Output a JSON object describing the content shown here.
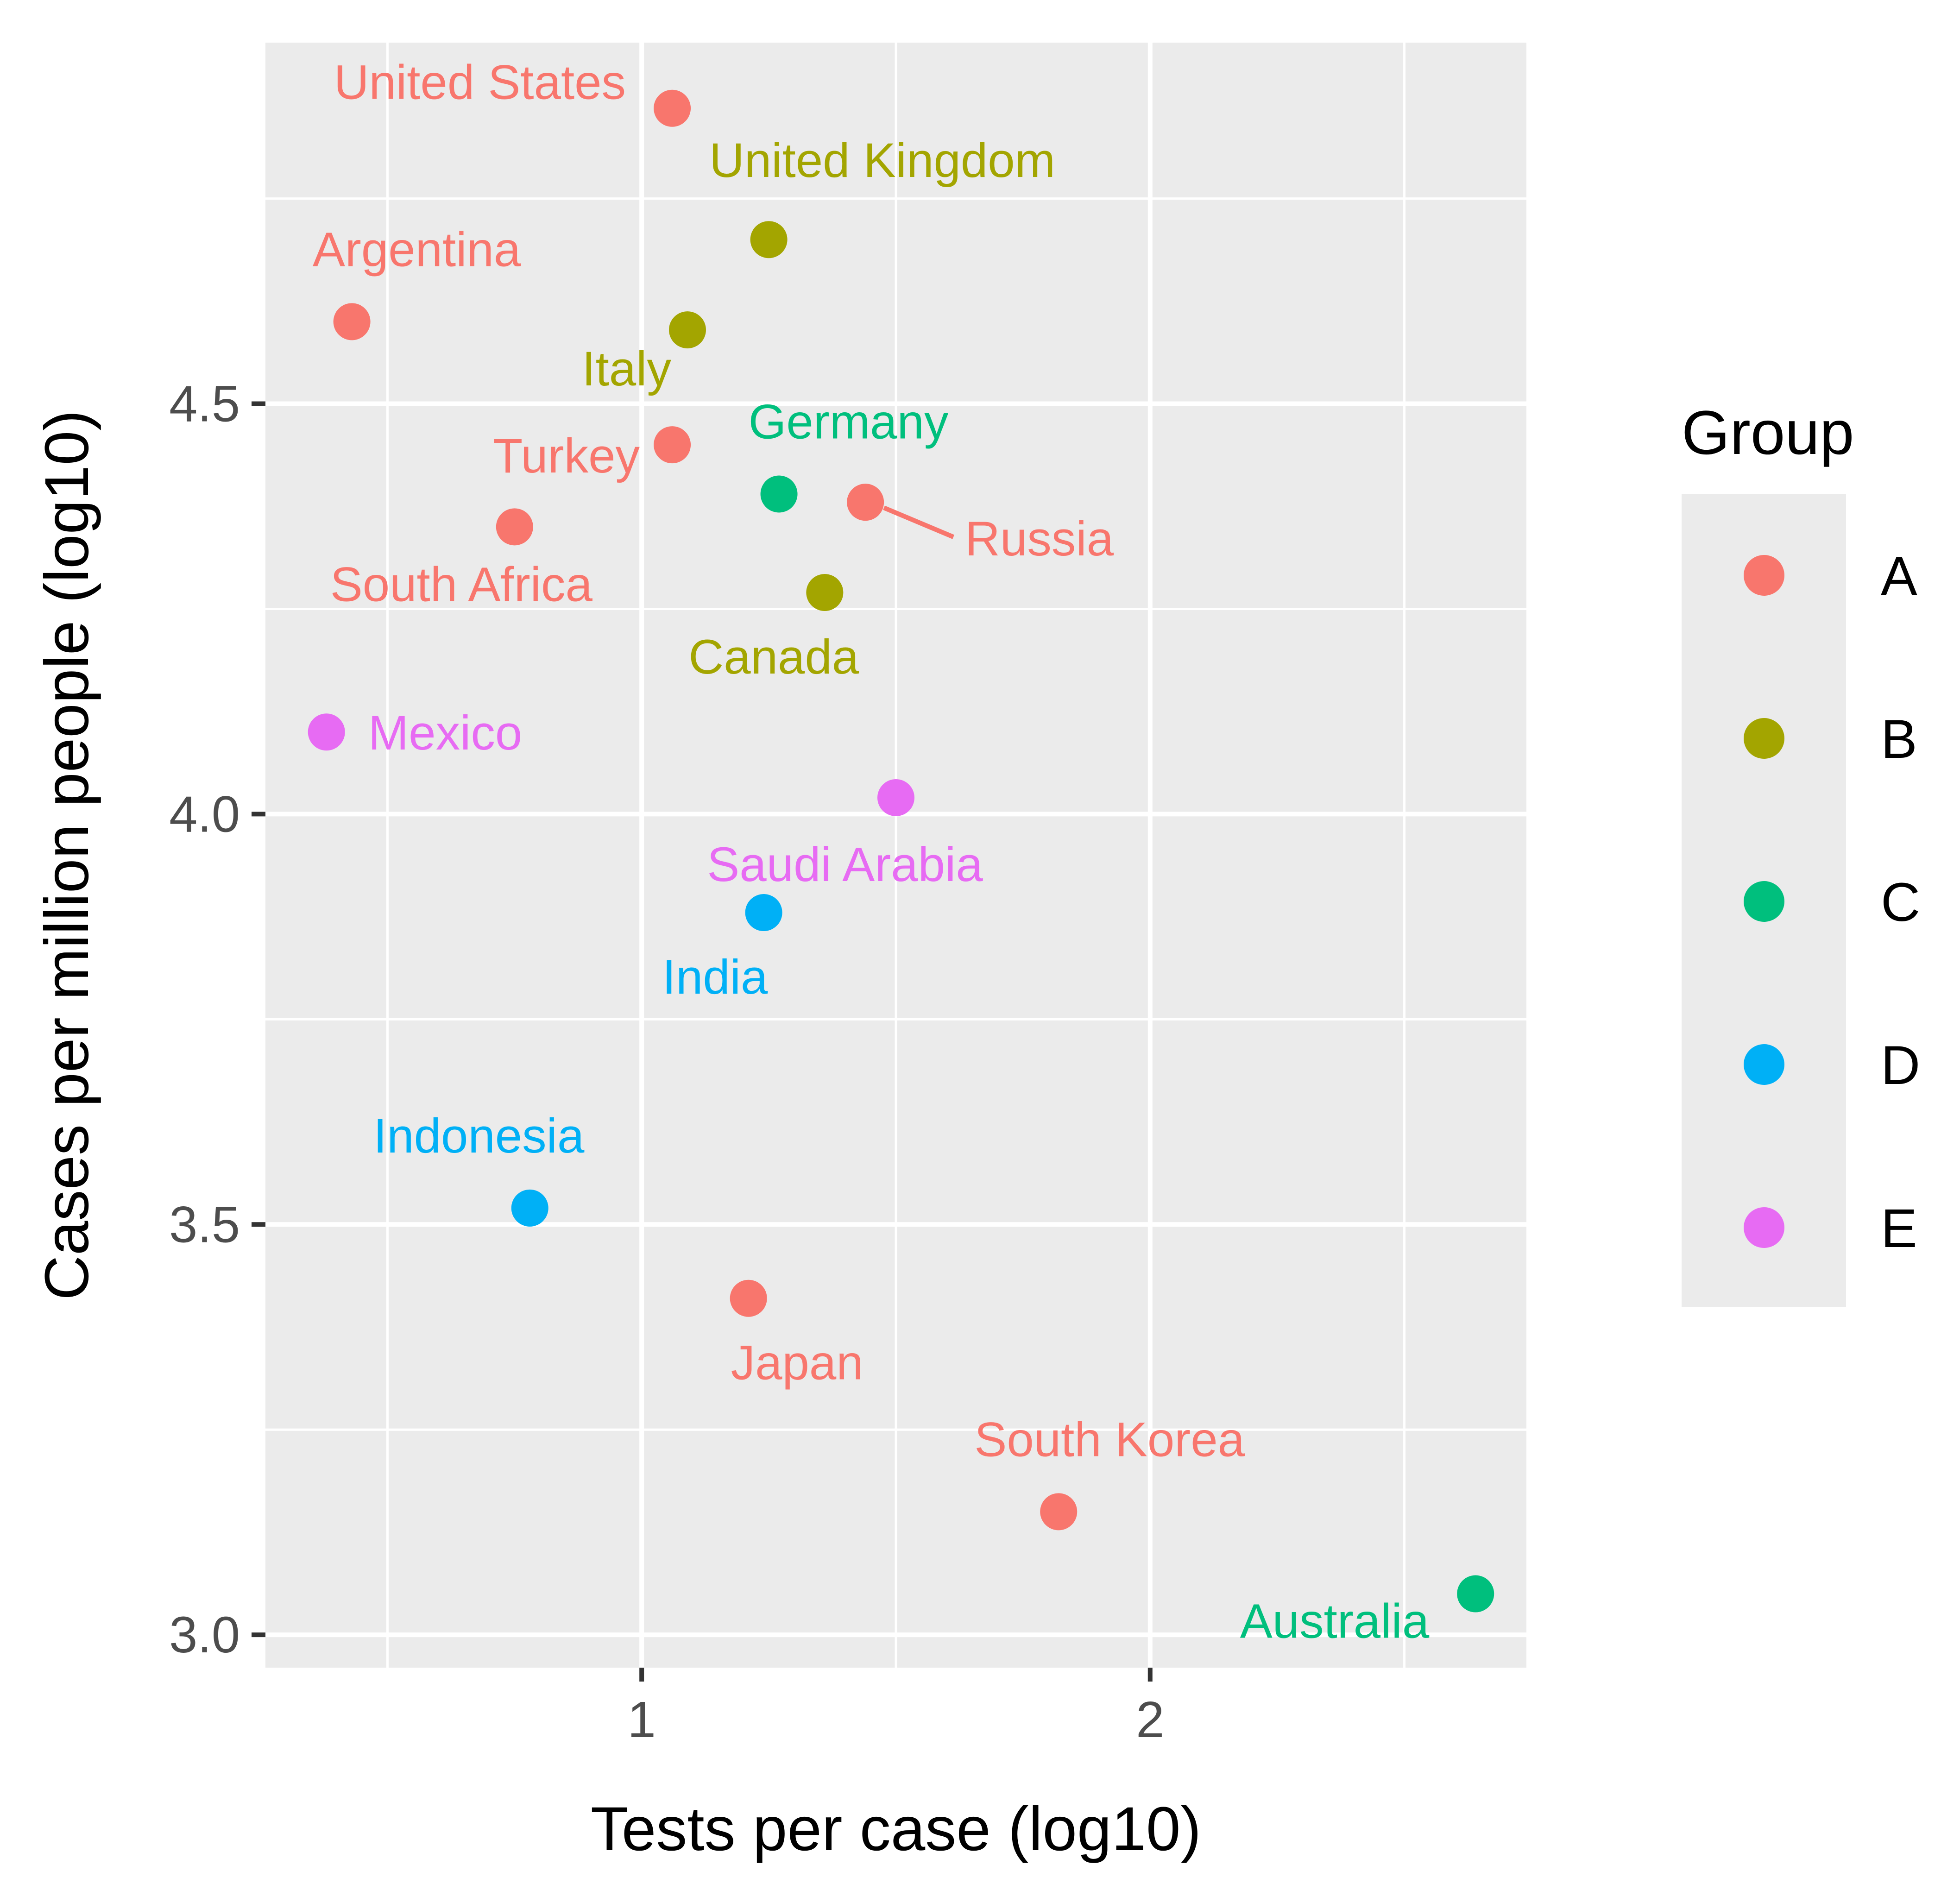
{
  "chart_data": {
    "type": "scatter",
    "xlabel": "Tests per case (log10)",
    "ylabel": "Cases per million people (log10)",
    "xlim": [
      0.26,
      2.74
    ],
    "ylim": [
      2.96,
      4.94
    ],
    "x_ticks": [
      1,
      2
    ],
    "x_tick_labels": [
      "1",
      "2"
    ],
    "y_ticks": [
      3.0,
      3.5,
      4.0,
      4.5
    ],
    "y_tick_labels": [
      "3.0",
      "3.5",
      "4.0",
      "4.5"
    ],
    "grid": true,
    "legend": {
      "title": "Group",
      "placement": "right",
      "entries": [
        {
          "label": "A",
          "color": "#F8766D"
        },
        {
          "label": "B",
          "color": "#A3A500"
        },
        {
          "label": "C",
          "color": "#00BF7D"
        },
        {
          "label": "D",
          "color": "#00B0F6"
        },
        {
          "label": "E",
          "color": "#E76BF3"
        }
      ]
    },
    "points": [
      {
        "label": "United States",
        "x": 1.06,
        "y": 4.86,
        "group": "A",
        "label_pos": "upper-left"
      },
      {
        "label": "United Kingdom",
        "x": 1.25,
        "y": 4.7,
        "group": "B",
        "label_pos": "above"
      },
      {
        "label": "Argentina",
        "x": 0.43,
        "y": 4.6,
        "group": "A",
        "label_pos": "above"
      },
      {
        "label": "Italy",
        "x": 1.09,
        "y": 4.59,
        "group": "B",
        "label_pos": "lower-left"
      },
      {
        "label": "Turkey",
        "x": 1.06,
        "y": 4.45,
        "group": "A",
        "label_pos": "lower-left"
      },
      {
        "label": "Germany",
        "x": 1.27,
        "y": 4.39,
        "group": "C",
        "label_pos": "above"
      },
      {
        "label": "Russia",
        "x": 1.44,
        "y": 4.38,
        "group": "A",
        "label_pos": "lower-right-leader"
      },
      {
        "label": "South Africa",
        "x": 0.75,
        "y": 4.35,
        "group": "A",
        "label_pos": "below"
      },
      {
        "label": "Canada",
        "x": 1.36,
        "y": 4.27,
        "group": "B",
        "label_pos": "below"
      },
      {
        "label": "Mexico",
        "x": 0.38,
        "y": 4.1,
        "group": "E",
        "label_pos": "right"
      },
      {
        "label": "Saudi Arabia",
        "x": 1.5,
        "y": 4.02,
        "group": "E",
        "label_pos": "below"
      },
      {
        "label": "India",
        "x": 1.24,
        "y": 3.88,
        "group": "D",
        "label_pos": "below"
      },
      {
        "label": "Indonesia",
        "x": 0.78,
        "y": 3.52,
        "group": "D",
        "label_pos": "above"
      },
      {
        "label": "Japan",
        "x": 1.21,
        "y": 3.41,
        "group": "A",
        "label_pos": "below"
      },
      {
        "label": "South Korea",
        "x": 1.82,
        "y": 3.15,
        "group": "A",
        "label_pos": "above"
      },
      {
        "label": "Australia",
        "x": 2.64,
        "y": 3.05,
        "group": "C",
        "label_pos": "lower-left"
      }
    ]
  }
}
